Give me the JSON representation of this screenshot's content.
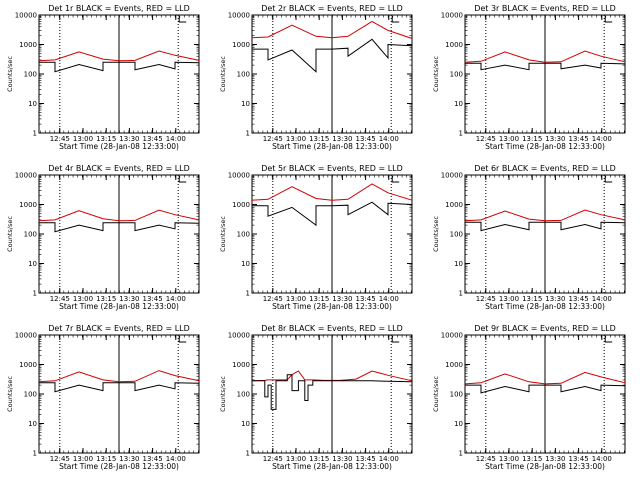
{
  "chart_data": [
    {
      "type": "line",
      "title": "Det 1r BLACK = Events, RED = LLD",
      "xlabel": "Start Time (28-Jan-08 12:33:00)",
      "ylabel": "Counts/sec",
      "xlim": [
        0,
        100
      ],
      "ylim": [
        1,
        10000
      ],
      "yscale": "log",
      "x_tick_labels": [
        "12:45",
        "13:00",
        "13:15",
        "13:30",
        "13:45",
        "14:00"
      ],
      "y_tick_labels": [
        "1",
        "10",
        "100",
        "1000",
        "10000"
      ],
      "vlines": [
        {
          "x": 13,
          "style": "dotted"
        },
        {
          "x": 50,
          "style": "solid"
        },
        {
          "x": 87,
          "style": "dotted"
        }
      ],
      "series": [
        {
          "color": "#d00000",
          "x": [
            0,
            10,
            25,
            40,
            50,
            60,
            75,
            85,
            100
          ],
          "y": [
            280,
            300,
            560,
            320,
            280,
            290,
            600,
            430,
            290
          ]
        },
        {
          "color": "#000000",
          "x": [
            0,
            10,
            10,
            25,
            40,
            40,
            50,
            60,
            60,
            75,
            85,
            85,
            100
          ],
          "y": [
            250,
            250,
            120,
            210,
            130,
            250,
            250,
            250,
            140,
            210,
            150,
            250,
            240
          ]
        }
      ]
    },
    {
      "type": "line",
      "title": "Det 2r BLACK = Events, RED = LLD",
      "xlabel": "Start Time (28-Jan-08 12:33:00)",
      "ylabel": "Counts/sec",
      "xlim": [
        0,
        100
      ],
      "ylim": [
        1,
        10000
      ],
      "yscale": "log",
      "x_tick_labels": [
        "12:45",
        "13:00",
        "13:15",
        "13:30",
        "13:45",
        "14:00"
      ],
      "y_tick_labels": [
        "1",
        "10",
        "100",
        "1000",
        "10000"
      ],
      "vlines": [
        {
          "x": 13,
          "style": "dotted"
        },
        {
          "x": 50,
          "style": "solid"
        },
        {
          "x": 87,
          "style": "dotted"
        }
      ],
      "series": [
        {
          "color": "#d00000",
          "x": [
            0,
            10,
            25,
            40,
            50,
            60,
            75,
            85,
            100
          ],
          "y": [
            1700,
            1800,
            4500,
            1900,
            1700,
            1900,
            6000,
            3000,
            1600
          ]
        },
        {
          "color": "#000000",
          "x": [
            0,
            10,
            10,
            25,
            40,
            40,
            50,
            60,
            60,
            75,
            85,
            85,
            100
          ],
          "y": [
            700,
            700,
            300,
            650,
            120,
            700,
            700,
            750,
            400,
            1500,
            350,
            1000,
            900
          ]
        }
      ]
    },
    {
      "type": "line",
      "title": "Det 3r BLACK = Events, RED = LLD",
      "xlabel": "Start Time (28-Jan-08 12:33:00)",
      "ylabel": "Counts/sec",
      "xlim": [
        0,
        100
      ],
      "ylim": [
        1,
        10000
      ],
      "yscale": "log",
      "x_tick_labels": [
        "12:45",
        "13:00",
        "13:15",
        "13:30",
        "13:45",
        "14:00"
      ],
      "y_tick_labels": [
        "1",
        "10",
        "100",
        "1000",
        "10000"
      ],
      "vlines": [
        {
          "x": 13,
          "style": "dotted"
        },
        {
          "x": 50,
          "style": "solid"
        },
        {
          "x": 87,
          "style": "dotted"
        }
      ],
      "series": [
        {
          "color": "#d00000",
          "x": [
            0,
            10,
            25,
            40,
            50,
            60,
            75,
            85,
            100
          ],
          "y": [
            250,
            270,
            560,
            300,
            250,
            260,
            600,
            400,
            260
          ]
        },
        {
          "color": "#000000",
          "x": [
            0,
            10,
            10,
            25,
            40,
            40,
            50,
            60,
            60,
            75,
            85,
            85,
            100
          ],
          "y": [
            230,
            230,
            140,
            200,
            140,
            230,
            230,
            230,
            150,
            200,
            160,
            230,
            220
          ]
        }
      ]
    },
    {
      "type": "line",
      "title": "Det 4r BLACK = Events, RED = LLD",
      "xlabel": "Start Time (28-Jan-08 12:33:00)",
      "ylabel": "Counts/sec",
      "xlim": [
        0,
        100
      ],
      "ylim": [
        1,
        10000
      ],
      "yscale": "log",
      "x_tick_labels": [
        "12:45",
        "13:00",
        "13:15",
        "13:30",
        "13:45",
        "14:00"
      ],
      "y_tick_labels": [
        "1",
        "10",
        "100",
        "1000",
        "10000"
      ],
      "vlines": [
        {
          "x": 13,
          "style": "dotted"
        },
        {
          "x": 50,
          "style": "solid"
        },
        {
          "x": 87,
          "style": "dotted"
        }
      ],
      "series": [
        {
          "color": "#d00000",
          "x": [
            0,
            10,
            25,
            40,
            50,
            60,
            75,
            85,
            100
          ],
          "y": [
            280,
            300,
            620,
            330,
            280,
            290,
            640,
            450,
            300
          ]
        },
        {
          "color": "#000000",
          "x": [
            0,
            10,
            10,
            25,
            40,
            40,
            50,
            60,
            60,
            75,
            85,
            85,
            100
          ],
          "y": [
            240,
            240,
            120,
            200,
            130,
            240,
            240,
            240,
            130,
            200,
            150,
            240,
            230
          ]
        }
      ]
    },
    {
      "type": "line",
      "title": "Det 5r BLACK = Events, RED = LLD",
      "xlabel": "Start Time (28-Jan-08 12:33:00)",
      "ylabel": "Counts/sec",
      "xlim": [
        0,
        100
      ],
      "ylim": [
        1,
        10000
      ],
      "yscale": "log",
      "x_tick_labels": [
        "12:45",
        "13:00",
        "13:15",
        "13:30",
        "13:45",
        "14:00"
      ],
      "y_tick_labels": [
        "1",
        "10",
        "100",
        "1000",
        "10000"
      ],
      "vlines": [
        {
          "x": 13,
          "style": "dotted"
        },
        {
          "x": 50,
          "style": "solid"
        },
        {
          "x": 87,
          "style": "dotted"
        }
      ],
      "series": [
        {
          "color": "#d00000",
          "x": [
            0,
            10,
            25,
            40,
            50,
            60,
            75,
            85,
            100
          ],
          "y": [
            1400,
            1500,
            4000,
            1600,
            1400,
            1500,
            5000,
            2500,
            1400
          ]
        },
        {
          "color": "#000000",
          "x": [
            0,
            10,
            10,
            25,
            40,
            40,
            50,
            60,
            60,
            75,
            85,
            85,
            100
          ],
          "y": [
            900,
            900,
            400,
            800,
            200,
            900,
            900,
            950,
            450,
            1200,
            450,
            1100,
            1000
          ]
        }
      ]
    },
    {
      "type": "line",
      "title": "Det 6r BLACK = Events, RED = LLD",
      "xlabel": "Start Time (28-Jan-08 12:33:00)",
      "ylabel": "Counts/sec",
      "xlim": [
        0,
        100
      ],
      "ylim": [
        1,
        10000
      ],
      "yscale": "log",
      "x_tick_labels": [
        "12:45",
        "13:00",
        "13:15",
        "13:30",
        "13:45",
        "14:00"
      ],
      "y_tick_labels": [
        "1",
        "10",
        "100",
        "1000",
        "10000"
      ],
      "vlines": [
        {
          "x": 13,
          "style": "dotted"
        },
        {
          "x": 50,
          "style": "solid"
        },
        {
          "x": 87,
          "style": "dotted"
        }
      ],
      "series": [
        {
          "color": "#d00000",
          "x": [
            0,
            10,
            25,
            40,
            50,
            60,
            75,
            85,
            100
          ],
          "y": [
            280,
            300,
            600,
            320,
            280,
            290,
            650,
            450,
            300
          ]
        },
        {
          "color": "#000000",
          "x": [
            0,
            10,
            10,
            25,
            40,
            40,
            50,
            60,
            60,
            75,
            85,
            85,
            100
          ],
          "y": [
            250,
            250,
            130,
            210,
            140,
            250,
            250,
            250,
            140,
            210,
            150,
            250,
            240
          ]
        }
      ]
    },
    {
      "type": "line",
      "title": "Det 7r BLACK = Events, RED = LLD",
      "xlabel": "Start Time (28-Jan-08 12:33:00)",
      "ylabel": "Counts/sec",
      "xlim": [
        0,
        100
      ],
      "ylim": [
        1,
        10000
      ],
      "yscale": "log",
      "x_tick_labels": [
        "12:45",
        "13:00",
        "13:15",
        "13:30",
        "13:45",
        "14:00"
      ],
      "y_tick_labels": [
        "1",
        "10",
        "100",
        "1000",
        "10000"
      ],
      "vlines": [
        {
          "x": 13,
          "style": "dotted"
        },
        {
          "x": 50,
          "style": "solid"
        },
        {
          "x": 87,
          "style": "dotted"
        }
      ],
      "series": [
        {
          "color": "#d00000",
          "x": [
            0,
            10,
            25,
            40,
            50,
            60,
            75,
            85,
            100
          ],
          "y": [
            260,
            280,
            560,
            300,
            260,
            270,
            620,
            420,
            280
          ]
        },
        {
          "color": "#000000",
          "x": [
            0,
            10,
            10,
            25,
            40,
            40,
            50,
            60,
            60,
            75,
            85,
            85,
            100
          ],
          "y": [
            240,
            240,
            120,
            200,
            130,
            240,
            240,
            240,
            130,
            200,
            150,
            240,
            230
          ]
        }
      ]
    },
    {
      "type": "line",
      "title": "Det 8r BLACK = Events, RED = LLD",
      "xlabel": "Start Time (28-Jan-08 12:33:00)",
      "ylabel": "Counts/sec",
      "xlim": [
        0,
        100
      ],
      "ylim": [
        1,
        10000
      ],
      "yscale": "log",
      "x_tick_labels": [
        "12:45",
        "13:00",
        "13:15",
        "13:30",
        "13:45",
        "14:00"
      ],
      "y_tick_labels": [
        "1",
        "10",
        "100",
        "1000",
        "10000"
      ],
      "vlines": [
        {
          "x": 13,
          "style": "dotted"
        },
        {
          "x": 50,
          "style": "solid"
        },
        {
          "x": 87,
          "style": "dotted"
        }
      ],
      "series": [
        {
          "color": "#d00000",
          "x": [
            0,
            8,
            10,
            12,
            15,
            22,
            25,
            29,
            33,
            35,
            38,
            45,
            55,
            65,
            75,
            85,
            100
          ],
          "y": [
            280,
            290,
            300,
            300,
            300,
            300,
            450,
            600,
            300,
            300,
            300,
            290,
            290,
            320,
            600,
            430,
            280
          ]
        },
        {
          "color": "#000000",
          "x": [
            0,
            8,
            8,
            10,
            10,
            12,
            12,
            15,
            15,
            22,
            22,
            25,
            25,
            29,
            29,
            33,
            33,
            35,
            35,
            38,
            38,
            45,
            55,
            65,
            75,
            85,
            100
          ],
          "y": [
            280,
            280,
            80,
            80,
            200,
            200,
            30,
            30,
            280,
            280,
            450,
            450,
            130,
            130,
            280,
            280,
            60,
            60,
            200,
            200,
            280,
            280,
            280,
            280,
            280,
            270,
            260
          ]
        }
      ]
    },
    {
      "type": "line",
      "title": "Det 9r BLACK = Events, RED = LLD",
      "xlabel": "Start Time (28-Jan-08 12:33:00)",
      "ylabel": "Counts/sec",
      "xlim": [
        0,
        100
      ],
      "ylim": [
        1,
        10000
      ],
      "yscale": "log",
      "x_tick_labels": [
        "12:45",
        "13:00",
        "13:15",
        "13:30",
        "13:45",
        "14:00"
      ],
      "y_tick_labels": [
        "1",
        "10",
        "100",
        "1000",
        "10000"
      ],
      "vlines": [
        {
          "x": 13,
          "style": "dotted"
        },
        {
          "x": 50,
          "style": "solid"
        },
        {
          "x": 87,
          "style": "dotted"
        }
      ],
      "series": [
        {
          "color": "#d00000",
          "x": [
            0,
            10,
            25,
            40,
            50,
            60,
            75,
            85,
            100
          ],
          "y": [
            220,
            240,
            480,
            260,
            220,
            230,
            540,
            380,
            240
          ]
        },
        {
          "color": "#000000",
          "x": [
            0,
            10,
            10,
            25,
            40,
            40,
            50,
            60,
            60,
            75,
            85,
            85,
            100
          ],
          "y": [
            200,
            200,
            110,
            180,
            120,
            200,
            200,
            200,
            120,
            180,
            130,
            200,
            190
          ]
        }
      ]
    }
  ]
}
